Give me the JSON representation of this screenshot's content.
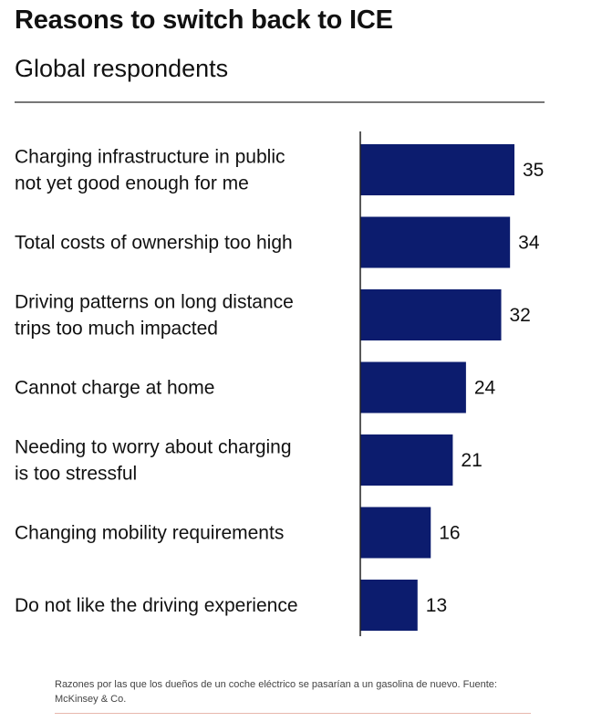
{
  "chart_data": {
    "type": "bar",
    "orientation": "horizontal",
    "title": "Reasons to switch back to ICE",
    "subtitle": "Global respondents",
    "categories": [
      [
        "Charging infrastructure in public",
        "not yet good enough for me"
      ],
      [
        "Total costs of ownership too high"
      ],
      [
        "Driving patterns on long distance",
        "trips too much impacted"
      ],
      [
        "Cannot charge at home"
      ],
      [
        "Needing to worry about charging",
        "is too stressful"
      ],
      [
        "Changing mobility requirements"
      ],
      [
        "Do not like the driving experience"
      ]
    ],
    "values": [
      35,
      34,
      32,
      24,
      21,
      16,
      13
    ],
    "xlim": [
      0,
      35
    ],
    "bar_color": "#0c1c6e",
    "grid": false,
    "legend": "none"
  },
  "caption": "Razones por las que los dueños de un coche eléctrico se pasarían a un gasolina de nuevo. Fuente: McKinsey & Co."
}
